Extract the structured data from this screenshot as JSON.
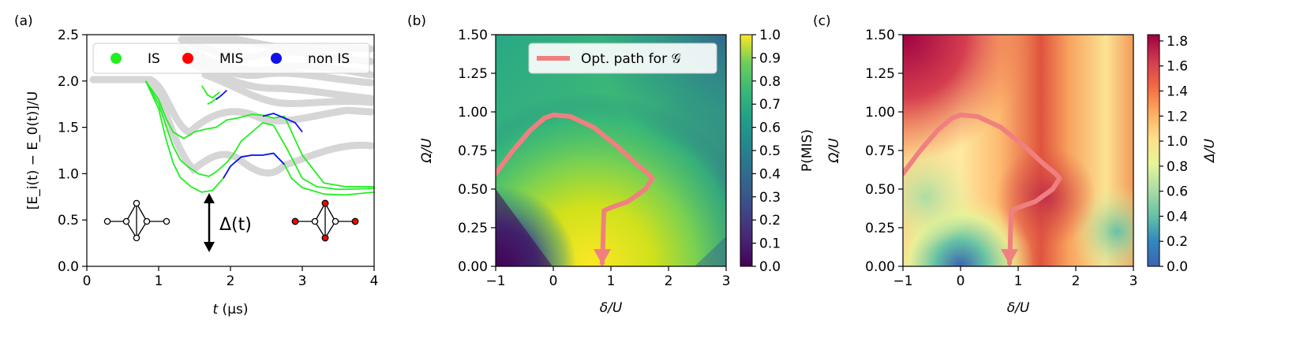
{
  "chart_data": [
    {
      "panel": "(a)",
      "type": "line",
      "xlabel_italic": "t",
      "xlabel_rest": " (μs)",
      "ylabel": "[E_i(t) − E_0(t)]/U",
      "xlim": [
        0,
        4
      ],
      "ylim": [
        0,
        2.5
      ],
      "xticks": [
        "0",
        "1",
        "2",
        "3",
        "4"
      ],
      "yticks": [
        "0.0",
        "0.5",
        "1.0",
        "1.5",
        "2.0",
        "2.5"
      ],
      "legend": {
        "placement": "top",
        "entries": [
          {
            "name": "IS",
            "color": "#22ee22"
          },
          {
            "name": "MIS",
            "color": "#ff0000"
          },
          {
            "name": "non IS",
            "color": "#1010ee"
          }
        ]
      },
      "gap_label": "Δ(t)",
      "gap_position": {
        "t": 1.68,
        "from": 0.0,
        "to": 0.8
      },
      "ground_gradient": {
        "start_color": "#22ee22",
        "end_color": "#ff0000",
        "transition_t": [
          1.6,
          3.2
        ]
      },
      "series": [
        {
          "color": "#22ee22",
          "x": [
            0.82,
            1.0,
            1.1,
            1.2,
            1.3,
            1.45,
            1.6,
            1.75,
            1.9,
            2.0,
            2.15,
            2.3,
            2.45,
            2.6,
            2.75,
            2.85,
            3.0,
            3.3,
            3.6,
            4.0
          ],
          "y": [
            2.0,
            1.7,
            1.38,
            1.12,
            0.96,
            0.86,
            0.8,
            0.82,
            0.95,
            1.08,
            1.18,
            1.2,
            1.2,
            1.22,
            1.1,
            0.95,
            0.85,
            0.78,
            0.77,
            0.8
          ]
        },
        {
          "color": "#22ee22",
          "x": [
            0.82,
            1.0,
            1.1,
            1.2,
            1.3,
            1.4,
            1.55,
            1.7,
            1.8,
            1.95,
            2.05,
            2.15,
            2.3,
            2.45,
            2.6,
            2.8,
            3.0,
            3.2,
            3.5,
            4.0
          ],
          "y": [
            2.0,
            1.75,
            1.52,
            1.3,
            1.15,
            1.08,
            1.0,
            0.97,
            1.02,
            1.12,
            1.22,
            1.35,
            1.45,
            1.55,
            1.52,
            1.25,
            0.95,
            0.86,
            0.83,
            0.84
          ]
        },
        {
          "color": "#22ee22",
          "x": [
            0.82,
            1.0,
            1.1,
            1.2,
            1.35,
            1.5,
            1.65,
            1.8,
            1.95,
            2.1,
            2.3,
            2.45,
            2.6,
            2.75,
            3.0,
            3.3,
            3.6,
            4.0
          ],
          "y": [
            2.0,
            1.8,
            1.6,
            1.45,
            1.38,
            1.45,
            1.48,
            1.5,
            1.58,
            1.6,
            1.64,
            1.63,
            1.6,
            1.62,
            1.2,
            0.9,
            0.86,
            0.86
          ]
        },
        {
          "color": "#22ee22",
          "x": [
            1.6,
            1.68,
            1.75,
            1.85
          ],
          "y": [
            1.95,
            1.85,
            1.82,
            1.88
          ]
        },
        {
          "color": "#22ee22",
          "x": [
            1.68,
            1.75,
            1.82
          ],
          "y": [
            1.75,
            1.78,
            1.82
          ]
        },
        {
          "color": "#1010ee",
          "x": [
            1.9,
            2.0,
            2.15,
            2.3,
            2.45,
            2.6,
            2.75
          ],
          "y": [
            0.95,
            1.08,
            1.18,
            1.2,
            1.2,
            1.22,
            1.1
          ]
        },
        {
          "color": "#1010ee",
          "x": [
            2.45,
            2.6,
            2.75,
            2.9,
            3.0
          ],
          "y": [
            1.62,
            1.65,
            1.6,
            1.55,
            1.45
          ]
        },
        {
          "color": "#1010ee",
          "x": [
            1.8,
            1.88,
            1.95
          ],
          "y": [
            1.8,
            1.85,
            1.9
          ]
        }
      ]
    },
    {
      "panel": "(b)",
      "type": "heatmap",
      "xlabel": "δ/U",
      "ylabel": "Ω/U",
      "xlim": [
        -1,
        3
      ],
      "ylim": [
        0,
        1.5
      ],
      "xticks": [
        "−1",
        "0",
        "1",
        "2",
        "3"
      ],
      "yticks": [
        "0.00",
        "0.25",
        "0.50",
        "0.75",
        "1.00",
        "1.25",
        "1.50"
      ],
      "colorbar": {
        "label": "P(MIS)",
        "min": 0.0,
        "max": 1.0,
        "ticks": [
          "0.0",
          "0.1",
          "0.2",
          "0.3",
          "0.4",
          "0.5",
          "0.6",
          "0.7",
          "0.8",
          "0.9",
          "1.0"
        ],
        "colormap": "viridis"
      },
      "legend": {
        "placement": "top-right",
        "entries": [
          {
            "name": "Opt. path for 𝒢",
            "color": "#f08080"
          }
        ]
      },
      "path": {
        "color": "#f08080",
        "x": [
          -1.0,
          -0.7,
          -0.4,
          -0.15,
          0.0,
          0.3,
          0.7,
          1.1,
          1.45,
          1.65,
          1.72,
          1.6,
          1.3,
          1.0,
          0.88,
          0.87,
          0.86,
          0.85
        ],
        "y": [
          0.6,
          0.75,
          0.88,
          0.96,
          0.98,
          0.97,
          0.9,
          0.78,
          0.66,
          0.6,
          0.57,
          0.5,
          0.42,
          0.38,
          0.36,
          0.25,
          0.12,
          0.02
        ]
      }
    },
    {
      "panel": "(c)",
      "type": "heatmap",
      "xlabel": "δ/U",
      "ylabel": "Ω/U",
      "xlim": [
        -1,
        3
      ],
      "ylim": [
        0,
        1.5
      ],
      "xticks": [
        "−1",
        "0",
        "1",
        "2",
        "3"
      ],
      "yticks": [
        "0.00",
        "0.25",
        "0.50",
        "0.75",
        "1.00",
        "1.25",
        "1.50"
      ],
      "colorbar": {
        "label": "Δ/U",
        "min": 0.0,
        "max": 1.85,
        "ticks": [
          "0.0",
          "0.2",
          "0.4",
          "0.6",
          "0.8",
          "1.0",
          "1.2",
          "1.4",
          "1.6",
          "1.8"
        ],
        "colormap": "spectral"
      },
      "path": {
        "color": "#f08080",
        "x": [
          -1.0,
          -0.7,
          -0.4,
          -0.15,
          0.0,
          0.3,
          0.7,
          1.1,
          1.45,
          1.65,
          1.72,
          1.6,
          1.3,
          1.0,
          0.88,
          0.87,
          0.86,
          0.85
        ],
        "y": [
          0.6,
          0.75,
          0.88,
          0.96,
          0.98,
          0.97,
          0.9,
          0.78,
          0.66,
          0.6,
          0.57,
          0.5,
          0.42,
          0.38,
          0.36,
          0.25,
          0.12,
          0.02
        ]
      }
    }
  ]
}
